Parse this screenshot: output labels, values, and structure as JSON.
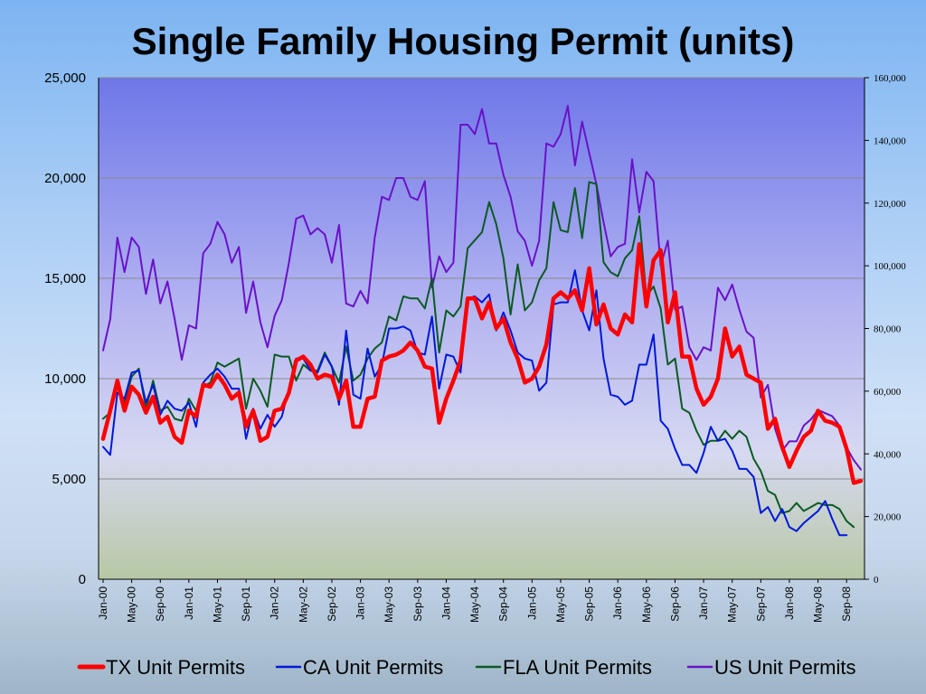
{
  "chart_data": {
    "type": "line",
    "title": "Single Family Housing Permit (units)",
    "x_labels": [
      "Jan-00",
      "May-00",
      "Sep-00",
      "Jan-01",
      "May-01",
      "Sep-01",
      "Jan-02",
      "May-02",
      "Sep-02",
      "Jan-03",
      "May-03",
      "Sep-03",
      "Jan-04",
      "May-04",
      "Sep-04",
      "Jan-05",
      "May-05",
      "Sep-05",
      "Jan-06",
      "May-06",
      "Sep-06",
      "Jan-07",
      "May-07",
      "Sep-07",
      "Jan-08",
      "May-08",
      "Sep-08"
    ],
    "y_left": {
      "min": 0,
      "max": 25000,
      "ticks": [
        "0",
        "5,000",
        "10,000",
        "15,000",
        "20,000",
        "25,000"
      ]
    },
    "y_right": {
      "min": 0,
      "max": 160000,
      "ticks": [
        "0",
        "20,000",
        "40,000",
        "60,000",
        "80,000",
        "100,000",
        "120,000",
        "140,000",
        "160,000"
      ]
    },
    "grid": true,
    "legend_position": "bottom",
    "series": [
      {
        "name": "TX Unit Permits",
        "color": "#ff0000",
        "axis": "left",
        "values": [
          7000,
          8400,
          9900,
          8400,
          9600,
          9200,
          8300,
          9100,
          7800,
          8100,
          7100,
          6800,
          8400,
          8100,
          9700,
          9600,
          10200,
          9700,
          9000,
          9300,
          7600,
          8400,
          6900,
          7100,
          8400,
          8500,
          9300,
          10900,
          11100,
          10700,
          10000,
          10200,
          10100,
          9000,
          9900,
          7600,
          7600,
          9000,
          9100,
          10900,
          11100,
          11200,
          11400,
          11800,
          11400,
          10600,
          10500,
          7800,
          9000,
          9900,
          10900,
          14000,
          14000,
          13000,
          13800,
          12500,
          13000,
          11800,
          11000,
          9800,
          10000,
          10600,
          11700,
          14000,
          14300,
          14000,
          14400,
          13400,
          15500,
          12700,
          13700,
          12500,
          12200,
          13200,
          12800,
          16700,
          13600,
          15900,
          16400,
          12800,
          14300,
          11100,
          11100,
          9500,
          8700,
          9100,
          10000,
          12500,
          11100,
          11600,
          10200,
          10000,
          9800,
          7500,
          8000,
          6600,
          5600,
          6400,
          7100,
          7400,
          8400,
          7900,
          7800,
          7600,
          6500,
          4800,
          4900
        ]
      },
      {
        "name": "CA Unit Permits",
        "color": "#0018d8",
        "axis": "left",
        "values": [
          6600,
          6200,
          9300,
          9000,
          10300,
          10400,
          8800,
          9700,
          8200,
          8900,
          8500,
          8400,
          8800,
          7600,
          9800,
          10200,
          10500,
          10100,
          9500,
          9500,
          7000,
          8500,
          7500,
          8200,
          7600,
          8100,
          9500,
          11000,
          11000,
          10400,
          10300,
          11200,
          10600,
          8700,
          12400,
          9200,
          9000,
          11500,
          10100,
          10700,
          12500,
          12500,
          12600,
          12400,
          11300,
          11200,
          13100,
          9500,
          11200,
          11100,
          10300,
          14000,
          14100,
          13800,
          14200,
          12400,
          13300,
          12400,
          11300,
          11000,
          10900,
          9400,
          9800,
          13700,
          13800,
          13800,
          15400,
          13400,
          12400,
          14400,
          11000,
          9200,
          9100,
          8700,
          8900,
          10700,
          10700,
          12200,
          7900,
          7500,
          6500,
          5700,
          5700,
          5300,
          6300,
          7600,
          6900,
          7000,
          6400,
          5500,
          5500,
          5100,
          3300,
          3600,
          2900,
          3500,
          2600,
          2400,
          2800,
          3100,
          3400,
          3900,
          3000,
          2200,
          2200
        ]
      },
      {
        "name": "FLA Unit Permits",
        "color": "#0b5a22",
        "axis": "left",
        "values": [
          8000,
          8300,
          9600,
          8800,
          10100,
          10500,
          8500,
          9900,
          8400,
          8600,
          8000,
          7900,
          9000,
          8400,
          9600,
          9800,
          10800,
          10600,
          10800,
          11000,
          8500,
          10000,
          9400,
          8600,
          11200,
          11100,
          11100,
          9900,
          10700,
          10400,
          10400,
          11300,
          10600,
          9800,
          11600,
          9900,
          10200,
          11000,
          11500,
          11800,
          13100,
          12900,
          14100,
          14000,
          14000,
          13500,
          15000,
          11300,
          13400,
          13100,
          13600,
          16500,
          16900,
          17300,
          18800,
          17700,
          16000,
          13200,
          15700,
          13400,
          13800,
          14900,
          15500,
          18800,
          17400,
          17300,
          19500,
          17000,
          19800,
          19700,
          15800,
          15300,
          15100,
          16000,
          16400,
          18100,
          14100,
          14600,
          13500,
          10700,
          11000,
          8500,
          8300,
          7400,
          6700,
          6900,
          6900,
          7400,
          7000,
          7400,
          7100,
          6000,
          5400,
          4400,
          4200,
          3300,
          3400,
          3800,
          3400,
          3600,
          3800,
          3700,
          3700,
          3500,
          2900,
          2600
        ]
      },
      {
        "name": "US Unit Permits",
        "color": "#6a12c8",
        "axis": "right",
        "values": [
          73000,
          83000,
          109000,
          98000,
          109000,
          106000,
          91000,
          102000,
          88000,
          95000,
          83000,
          70000,
          81000,
          80000,
          104000,
          107000,
          114000,
          110000,
          101000,
          106000,
          85000,
          95000,
          82000,
          74000,
          84000,
          89000,
          101000,
          115000,
          116000,
          110000,
          112000,
          110000,
          101000,
          113000,
          88000,
          87000,
          92000,
          88000,
          109000,
          122000,
          121000,
          128000,
          128000,
          122000,
          121000,
          127000,
          93000,
          103000,
          98000,
          101000,
          145000,
          145000,
          142000,
          150000,
          139000,
          139000,
          129000,
          122000,
          111000,
          108000,
          100000,
          108000,
          139000,
          138000,
          142000,
          151000,
          132000,
          146000,
          136000,
          126000,
          114000,
          103000,
          106000,
          107000,
          134000,
          117000,
          130000,
          127000,
          100000,
          108000,
          86000,
          87000,
          74000,
          70000,
          74000,
          73000,
          93000,
          89000,
          94000,
          86000,
          79000,
          77000,
          58000,
          62000,
          48000,
          41000,
          44000,
          44000,
          49000,
          51000,
          54000,
          53000,
          52000,
          49000,
          42000,
          38000,
          35000
        ]
      }
    ]
  }
}
